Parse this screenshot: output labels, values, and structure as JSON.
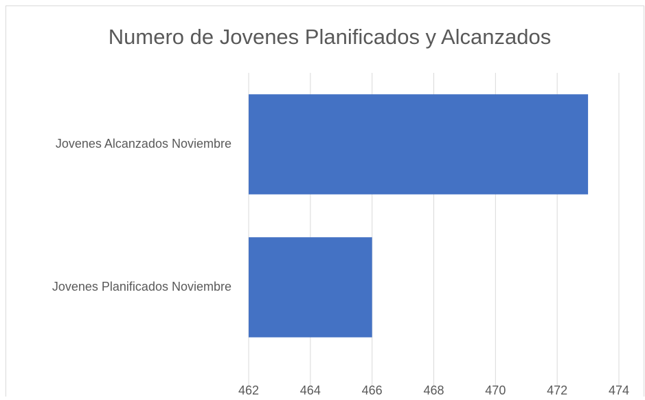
{
  "chart_data": {
    "type": "bar",
    "orientation": "horizontal",
    "title": "Numero de Jovenes Planificados y Alcanzados",
    "categories": [
      "Jovenes Alcanzados Noviembre",
      "Jovenes Planificados Noviembre"
    ],
    "values": [
      473,
      466
    ],
    "color": "#4472c4",
    "xlim": [
      462,
      474
    ],
    "xticks": [
      462,
      464,
      466,
      468,
      470,
      472,
      474
    ],
    "grid": true
  }
}
